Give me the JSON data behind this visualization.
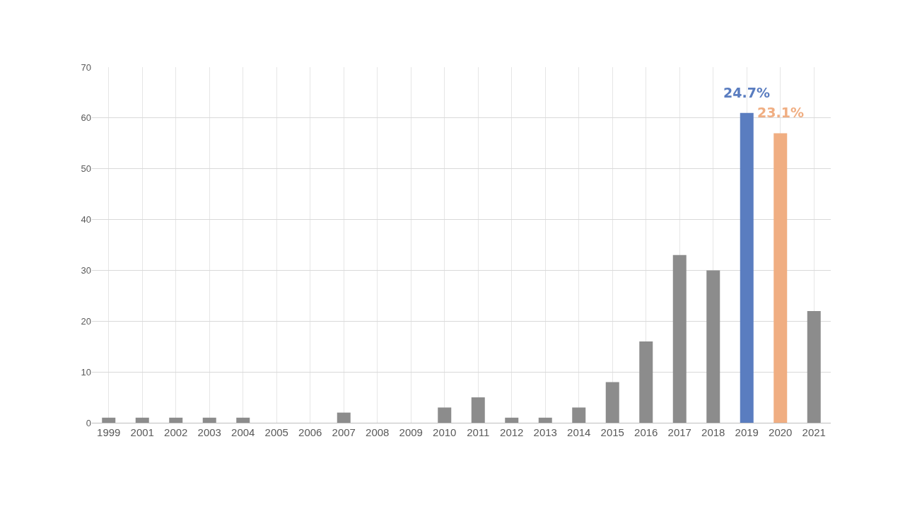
{
  "chart_data": {
    "type": "bar",
    "categories": [
      "1999",
      "2001",
      "2002",
      "2003",
      "2004",
      "2005",
      "2006",
      "2007",
      "2008",
      "2009",
      "2010",
      "2011",
      "2012",
      "2013",
      "2014",
      "2015",
      "2016",
      "2017",
      "2018",
      "2019",
      "2020",
      "2021"
    ],
    "values": [
      1,
      1,
      1,
      1,
      1,
      0,
      0,
      2,
      0,
      0,
      3,
      5,
      1,
      1,
      3,
      8,
      16,
      33,
      30,
      61,
      57,
      22
    ],
    "colors": [
      "#8c8c8c",
      "#8c8c8c",
      "#8c8c8c",
      "#8c8c8c",
      "#8c8c8c",
      "#8c8c8c",
      "#8c8c8c",
      "#8c8c8c",
      "#8c8c8c",
      "#8c8c8c",
      "#8c8c8c",
      "#8c8c8c",
      "#8c8c8c",
      "#8c8c8c",
      "#8c8c8c",
      "#8c8c8c",
      "#8c8c8c",
      "#8c8c8c",
      "#8c8c8c",
      "#5a7dc0",
      "#f0ae82",
      "#8c8c8c"
    ],
    "ylim": [
      0,
      70
    ],
    "yticks": [
      0,
      10,
      20,
      30,
      40,
      50,
      60,
      70
    ],
    "grid": true,
    "annotations": [
      {
        "text": "24.7%",
        "x": "2019",
        "y": 61
      },
      {
        "text": "23.1%",
        "x": "2020",
        "y": 57
      }
    ]
  }
}
